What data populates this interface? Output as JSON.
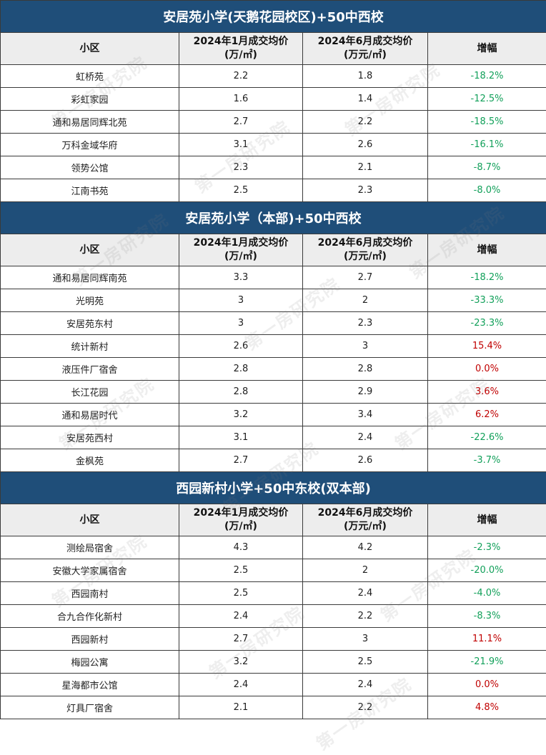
{
  "watermark": "第一房研究院",
  "header": {
    "col_community": "小区",
    "col_jan_line1": "2024年1月成交均价",
    "col_jan_line2": "(万/㎡)",
    "col_jun_line1": "2024年6月成交均价",
    "col_jun_line2": "(万元/㎡)",
    "col_change": "增幅"
  },
  "colors": {
    "title_bg": "#1f4e79",
    "header_bg": "#ededed",
    "negative": "#12a05a",
    "positive": "#c00000"
  },
  "sections": [
    {
      "title": "安居苑小学(天鹅花园校区)+50中西校",
      "rows": [
        {
          "name": "虹桥苑",
          "jan": "2.2",
          "jun": "1.8",
          "change": "-18.2%",
          "sign": "neg"
        },
        {
          "name": "彩虹家园",
          "jan": "1.6",
          "jun": "1.4",
          "change": "-12.5%",
          "sign": "neg"
        },
        {
          "name": "通和易居同辉北苑",
          "jan": "2.7",
          "jun": "2.2",
          "change": "-18.5%",
          "sign": "neg"
        },
        {
          "name": "万科金域华府",
          "jan": "3.1",
          "jun": "2.6",
          "change": "-16.1%",
          "sign": "neg"
        },
        {
          "name": "领势公馆",
          "jan": "2.3",
          "jun": "2.1",
          "change": "-8.7%",
          "sign": "neg"
        },
        {
          "name": "江南书苑",
          "jan": "2.5",
          "jun": "2.3",
          "change": "-8.0%",
          "sign": "neg"
        }
      ]
    },
    {
      "title": "安居苑小学（本部)+50中西校",
      "rows": [
        {
          "name": "通和易居同辉南苑",
          "jan": "3.3",
          "jun": "2.7",
          "change": "-18.2%",
          "sign": "neg"
        },
        {
          "name": "光明苑",
          "jan": "3",
          "jun": "2",
          "change": "-33.3%",
          "sign": "neg"
        },
        {
          "name": "安居苑东村",
          "jan": "3",
          "jun": "2.3",
          "change": "-23.3%",
          "sign": "neg"
        },
        {
          "name": "统计新村",
          "jan": "2.6",
          "jun": "3",
          "change": "15.4%",
          "sign": "pos"
        },
        {
          "name": "液压件厂宿舍",
          "jan": "2.8",
          "jun": "2.8",
          "change": "0.0%",
          "sign": "pos"
        },
        {
          "name": "长江花园",
          "jan": "2.8",
          "jun": "2.9",
          "change": "3.6%",
          "sign": "pos"
        },
        {
          "name": "通和易居时代",
          "jan": "3.2",
          "jun": "3.4",
          "change": "6.2%",
          "sign": "pos"
        },
        {
          "name": "安居苑西村",
          "jan": "3.1",
          "jun": "2.4",
          "change": "-22.6%",
          "sign": "neg"
        },
        {
          "name": "金枫苑",
          "jan": "2.7",
          "jun": "2.6",
          "change": "-3.7%",
          "sign": "neg"
        }
      ]
    },
    {
      "title": "西园新村小学+50中东校(双本部)",
      "rows": [
        {
          "name": "测绘局宿舍",
          "jan": "4.3",
          "jun": "4.2",
          "change": "-2.3%",
          "sign": "neg"
        },
        {
          "name": "安徽大学家属宿舍",
          "jan": "2.5",
          "jun": "2",
          "change": "-20.0%",
          "sign": "neg"
        },
        {
          "name": "西园南村",
          "jan": "2.5",
          "jun": "2.4",
          "change": "-4.0%",
          "sign": "neg"
        },
        {
          "name": "合九合作化新村",
          "jan": "2.4",
          "jun": "2.2",
          "change": "-8.3%",
          "sign": "neg"
        },
        {
          "name": "西园新村",
          "jan": "2.7",
          "jun": "3",
          "change": "11.1%",
          "sign": "pos"
        },
        {
          "name": "梅园公寓",
          "jan": "3.2",
          "jun": "2.5",
          "change": "-21.9%",
          "sign": "neg"
        },
        {
          "name": "星海都市公馆",
          "jan": "2.4",
          "jun": "2.4",
          "change": "0.0%",
          "sign": "pos"
        },
        {
          "name": "灯具厂宿舍",
          "jan": "2.1",
          "jun": "2.2",
          "change": "4.8%",
          "sign": "pos"
        }
      ]
    }
  ]
}
